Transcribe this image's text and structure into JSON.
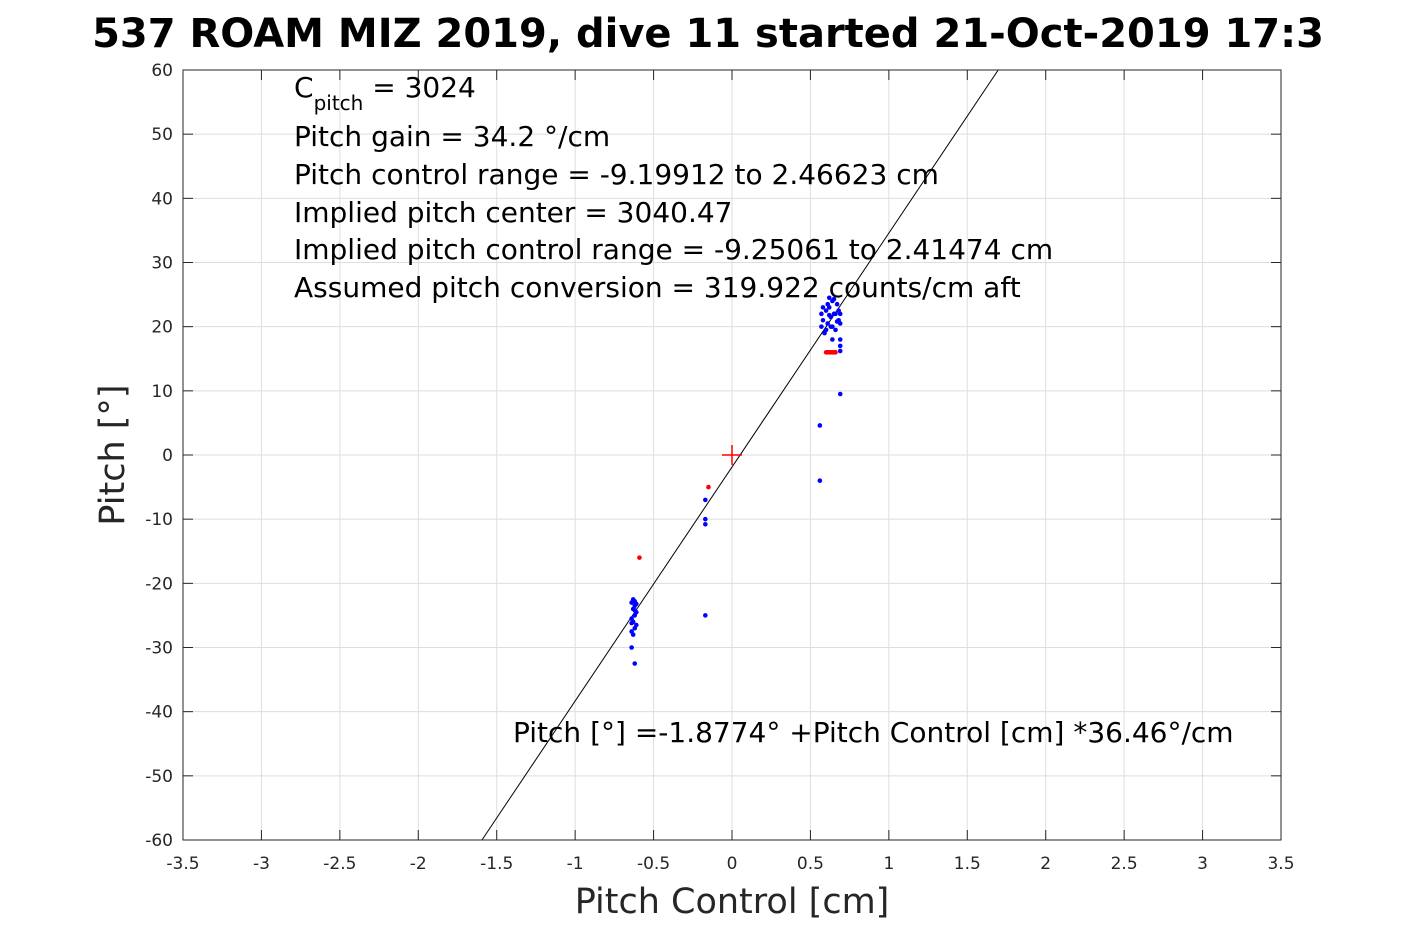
{
  "chart_data": {
    "type": "scatter",
    "title": "537 ROAM MIZ 2019, dive 11 started 21-Oct-2019 17:3",
    "xlabel": "Pitch Control [cm]",
    "ylabel": "Pitch [°]",
    "xlim": [
      -3.5,
      3.5
    ],
    "ylim": [
      -60,
      60
    ],
    "xticks": [
      -3.5,
      -3,
      -2.5,
      -2,
      -1.5,
      -1,
      -0.5,
      0,
      0.5,
      1,
      1.5,
      2,
      2.5,
      3,
      3.5
    ],
    "yticks": [
      -60,
      -50,
      -40,
      -30,
      -20,
      -10,
      0,
      10,
      20,
      30,
      40,
      50,
      60
    ],
    "xtick_labels": [
      "-3.5",
      "-3",
      "-2.5",
      "-2",
      "-1.5",
      "-1",
      "-0.5",
      "0",
      "0.5",
      "1",
      "1.5",
      "2",
      "2.5",
      "3",
      "3.5"
    ],
    "ytick_labels": [
      "-60",
      "-50",
      "-40",
      "-30",
      "-20",
      "-10",
      "0",
      "10",
      "20",
      "30",
      "40",
      "50",
      "60"
    ],
    "grid": true,
    "colors": {
      "blue_points": "#0000ff",
      "red_points": "#ff0000",
      "fit_line": "#000000",
      "center_marker": "#ff0000",
      "grid": "#dedede"
    },
    "fit_line": {
      "intercept": -1.8774,
      "slope": 36.46
    },
    "center_marker": {
      "x": 0,
      "y": 0
    },
    "series": [
      {
        "color": "blue",
        "points": [
          [
            0.57,
            22
          ],
          [
            0.58,
            21
          ],
          [
            0.6,
            22.5
          ],
          [
            0.61,
            20.5
          ],
          [
            0.62,
            23
          ],
          [
            0.63,
            21.5
          ],
          [
            0.64,
            24
          ],
          [
            0.64,
            20
          ],
          [
            0.65,
            22
          ],
          [
            0.66,
            19.5
          ],
          [
            0.67,
            23.5
          ],
          [
            0.68,
            21
          ],
          [
            0.69,
            20.5
          ],
          [
            0.69,
            18
          ],
          [
            0.68,
            22.5
          ],
          [
            0.62,
            24.5
          ],
          [
            0.6,
            19.5
          ],
          [
            0.58,
            23
          ],
          [
            0.66,
            22
          ],
          [
            0.63,
            20
          ],
          [
            0.69,
            17
          ],
          [
            0.69,
            16.2
          ],
          [
            0.64,
            18
          ],
          [
            0.59,
            19
          ],
          [
            0.62,
            21.8
          ],
          [
            0.67,
            20.8
          ],
          [
            0.61,
            23.5
          ],
          [
            0.65,
            24.3
          ],
          [
            0.57,
            20
          ],
          [
            0.69,
            22
          ],
          [
            0.69,
            9.5
          ],
          [
            0.56,
            4.6
          ],
          [
            0.56,
            -4
          ],
          [
            -0.64,
            -23
          ],
          [
            -0.63,
            -24
          ],
          [
            -0.62,
            -25
          ],
          [
            -0.63,
            -26
          ],
          [
            -0.62,
            -27
          ],
          [
            -0.64,
            -25.5
          ],
          [
            -0.61,
            -24.5
          ],
          [
            -0.63,
            -22.5
          ],
          [
            -0.62,
            -23.5
          ],
          [
            -0.64,
            -27.5
          ],
          [
            -0.61,
            -26.5
          ],
          [
            -0.63,
            -28
          ],
          [
            -0.62,
            -24.2
          ],
          [
            -0.61,
            -23.2
          ],
          [
            -0.64,
            -26.2
          ],
          [
            -0.62,
            -22.8
          ],
          [
            -0.64,
            -30
          ],
          [
            -0.62,
            -32.5
          ],
          [
            -0.17,
            -7
          ],
          [
            -0.17,
            -10
          ],
          [
            -0.17,
            -10.8
          ],
          [
            -0.17,
            -25
          ]
        ]
      },
      {
        "color": "red",
        "points": [
          [
            0.6,
            16
          ],
          [
            0.61,
            16
          ],
          [
            0.62,
            16
          ],
          [
            0.63,
            16
          ],
          [
            0.64,
            16
          ],
          [
            0.65,
            16
          ],
          [
            0.66,
            16
          ],
          [
            -0.59,
            -16
          ],
          [
            -0.15,
            -5
          ]
        ]
      }
    ],
    "annotations": {
      "cpitch_prefix": "C",
      "cpitch_sub": "pitch",
      "cpitch_value": " = 3024",
      "line2": "Pitch gain = 34.2 °/cm",
      "line3": "Pitch control range = -9.19912 to 2.46623 cm",
      "line4": "Implied pitch center = 3040.47",
      "line5": "Implied pitch control range = -9.25061 to 2.41474 cm",
      "line6": "Assumed pitch conversion = 319.922 counts/cm aft",
      "fit_equation": "Pitch [°] =-1.8774° +Pitch Control [cm] *36.46°/cm"
    }
  }
}
